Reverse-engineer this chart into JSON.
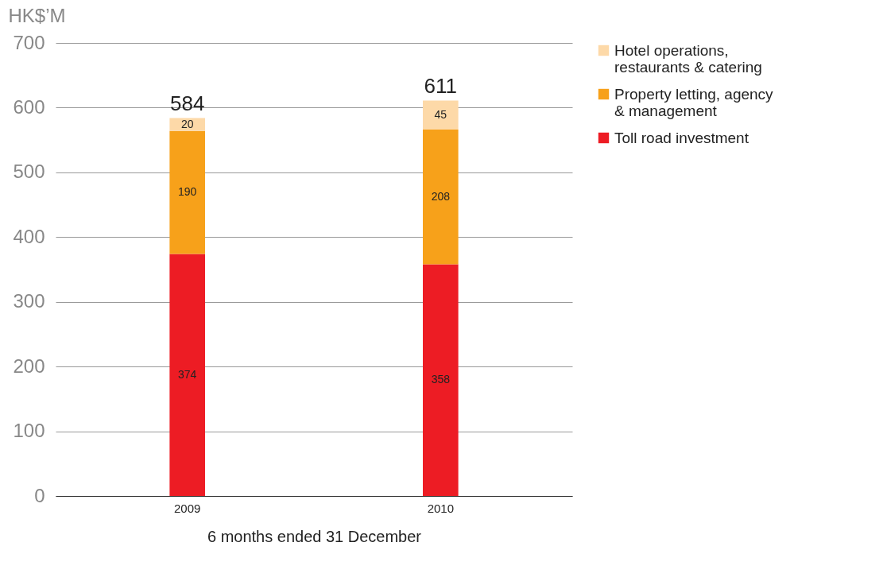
{
  "chart_data": {
    "type": "bar",
    "stacked": true,
    "categories": [
      "2009",
      "2010"
    ],
    "series": [
      {
        "name": "Toll road investment",
        "color": "#ed1c24",
        "values": [
          374,
          358
        ]
      },
      {
        "name": "Property letting, agency & management",
        "color": "#f7a11a",
        "values": [
          190,
          208
        ]
      },
      {
        "name": "Hotel operations, restaurants & catering",
        "color": "#fdd9a8",
        "values": [
          20,
          45
        ]
      }
    ],
    "totals": [
      "584",
      "611"
    ],
    "data_labels": true,
    "ylim": [
      0,
      700
    ],
    "yticks": [
      0,
      100,
      200,
      300,
      400,
      500,
      600,
      700
    ],
    "grid": "y",
    "legend": "right",
    "ylabel": "HK$’M",
    "xlabel": "6 months ended 31 December"
  }
}
